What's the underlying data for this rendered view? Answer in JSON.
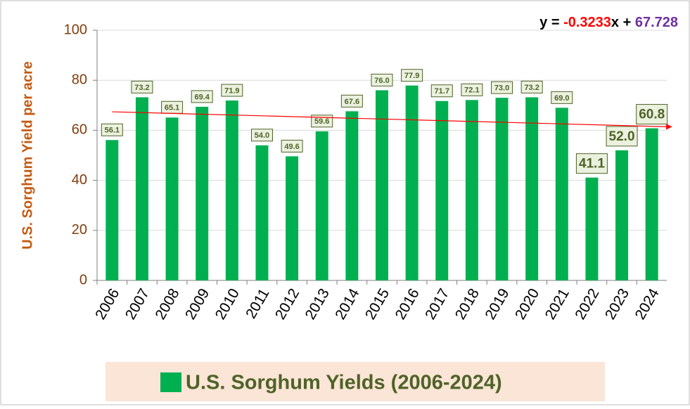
{
  "chart_data": {
    "type": "bar",
    "y_axis_label": "U.S. Sorghum Yield per acre",
    "categories": [
      "2006",
      "2007",
      "2008",
      "2009",
      "2010",
      "2011",
      "2012",
      "2013",
      "2014",
      "2015",
      "2016",
      "2017",
      "2018",
      "2019",
      "2020",
      "2021",
      "2022",
      "2023",
      "2024"
    ],
    "series": [
      {
        "name": "U.S. Sorghum Yields (2006-2024)",
        "color": "#00b050",
        "values": [
          56.1,
          73.2,
          65.1,
          69.4,
          71.9,
          54.0,
          49.6,
          59.6,
          67.6,
          76.0,
          77.9,
          71.7,
          72.1,
          73.0,
          73.2,
          69.0,
          41.1,
          52.0,
          60.8
        ],
        "value_labels": [
          "56.1",
          "73.2",
          "65.1",
          "69.4",
          "71.9",
          "54.0",
          "49.6",
          "59.6",
          "67.6",
          "76.0",
          "77.9",
          "71.7",
          "72.1",
          "73.0",
          "73.2",
          "69.0",
          "41.1",
          "52.0",
          "60.8"
        ]
      }
    ],
    "ylim": [
      0,
      100
    ],
    "yticks": [
      0,
      20,
      40,
      60,
      80,
      100
    ],
    "grid": true,
    "trendline": {
      "prefix": "y = ",
      "slope": -0.3233,
      "middle": "x + ",
      "intercept": 67.728,
      "color": "#ff0000"
    }
  }
}
